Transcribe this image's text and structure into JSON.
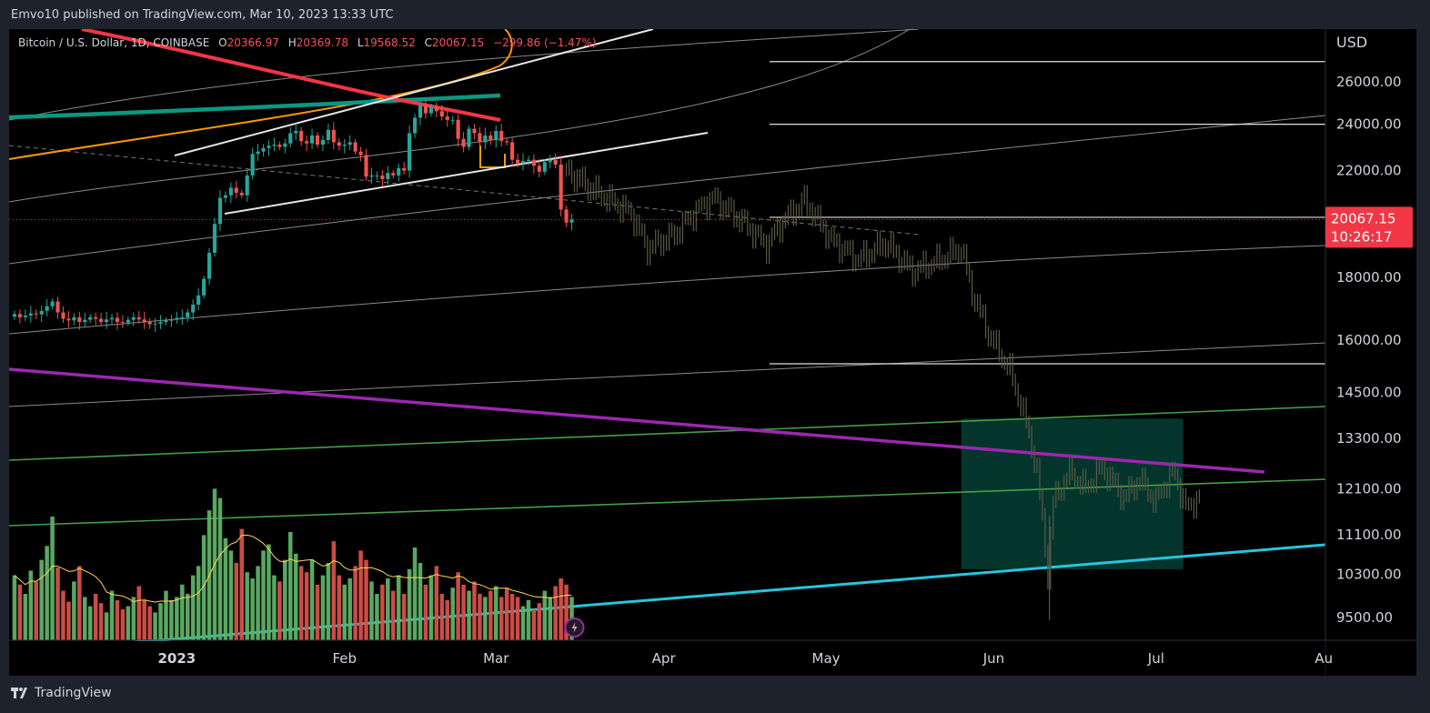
{
  "header": {
    "published": "Emvo10 published on TradingView.com, Mar 10, 2023 13:33 UTC"
  },
  "legend": {
    "symbol": "Bitcoin / U.S. Dollar, 1D, COINBASE",
    "o_label": "O",
    "o_value": "20366.97",
    "h_label": "H",
    "h_value": "20369.78",
    "l_label": "L",
    "l_value": "19568.52",
    "c_label": "C",
    "c_value": "20067.15",
    "change": "−299.86 (−1.47%)"
  },
  "price_axis": {
    "currency": "USD",
    "current_price": "20067.15",
    "countdown": "10:26:17"
  },
  "chart_data": {
    "type": "candlestick",
    "title": "Bitcoin / U.S. Dollar, 1D, COINBASE",
    "y_scale": "log",
    "ylim": [
      9100,
      28700
    ],
    "y_ticks": [
      {
        "value": 26000,
        "label": "26000.00"
      },
      {
        "value": 24000,
        "label": "24000.00"
      },
      {
        "value": 22000,
        "label": "22000.00"
      },
      {
        "value": 18000,
        "label": "18000.00"
      },
      {
        "value": 16000,
        "label": "16000.00"
      },
      {
        "value": 14500,
        "label": "14500.00"
      },
      {
        "value": 13300,
        "label": "13300.00"
      },
      {
        "value": 12100,
        "label": "12100.00"
      },
      {
        "value": 11100,
        "label": "11100.00"
      },
      {
        "value": 10300,
        "label": "10300.00"
      },
      {
        "value": 9500,
        "label": "9500.00"
      }
    ],
    "x_ticks": [
      {
        "day": 16,
        "label": "2023",
        "bold": true
      },
      {
        "day": 47,
        "label": "Feb",
        "bold": false
      },
      {
        "day": 75,
        "label": "Mar",
        "bold": false
      },
      {
        "day": 106,
        "label": "Apr",
        "bold": false
      },
      {
        "day": 136,
        "label": "May",
        "bold": false
      },
      {
        "day": 167,
        "label": "Jun",
        "bold": false
      },
      {
        "day": 197,
        "label": "Jul",
        "bold": false
      },
      {
        "day": 228,
        "label": "Au",
        "bold": false
      }
    ],
    "x_range_days": [
      -15,
      228.3
    ],
    "candles_close": [
      16800,
      16700,
      16750,
      16820,
      16790,
      16900,
      17050,
      17200,
      16850,
      16650,
      16600,
      16700,
      16550,
      16620,
      16700,
      16650,
      16550,
      16630,
      16680,
      16550,
      16530,
      16620,
      16700,
      16630,
      16550,
      16480,
      16500,
      16550,
      16600,
      16620,
      16680,
      16700,
      16850,
      17100,
      17400,
      17950,
      18850,
      19900,
      20900,
      21000,
      21300,
      21100,
      21000,
      21800,
      22700,
      22800,
      22950,
      23050,
      23100,
      23000,
      23150,
      23600,
      23700,
      23250,
      23150,
      23500,
      23100,
      23300,
      23750,
      23200,
      23050,
      23100,
      23200,
      22800,
      22650,
      21750,
      21800,
      21800,
      21650,
      21900,
      21800,
      22100,
      22000,
      23600,
      24300,
      24850,
      24500,
      24800,
      24600,
      24350,
      24200,
      24200,
      23350,
      23000,
      23800,
      23600,
      23200,
      23500,
      23300,
      23700,
      23250,
      23200,
      22450,
      22300,
      22400,
      22450,
      22200,
      21950,
      22350,
      22450,
      22250,
      20450,
      19950,
      20067.15
    ],
    "start_day": -14,
    "projection": {
      "start_day": 88,
      "end_day": 205,
      "waypoints": [
        [
          88,
          22000
        ],
        [
          93,
          21200
        ],
        [
          100,
          20300
        ],
        [
          103,
          19000
        ],
        [
          108,
          19500
        ],
        [
          111,
          20200
        ],
        [
          115,
          20900
        ],
        [
          120,
          20100
        ],
        [
          125,
          19100
        ],
        [
          128,
          20000
        ],
        [
          132,
          20800
        ],
        [
          137,
          19300
        ],
        [
          142,
          18600
        ],
        [
          147,
          19200
        ],
        [
          152,
          18200
        ],
        [
          157,
          18600
        ],
        [
          161,
          19000
        ],
        [
          163,
          17500
        ],
        [
          166,
          16200
        ],
        [
          170,
          15100
        ],
        [
          173,
          13700
        ],
        [
          175,
          12500
        ],
        [
          177,
          10300
        ],
        [
          178,
          11800
        ],
        [
          181,
          12500
        ],
        [
          184,
          12100
        ],
        [
          187,
          12600
        ],
        [
          191,
          11900
        ],
        [
          194,
          12300
        ],
        [
          197,
          11800
        ],
        [
          200,
          12500
        ],
        [
          203,
          11600
        ],
        [
          205,
          12000
        ]
      ]
    },
    "volume": {
      "ma_line": true,
      "bars_relative": [
        0.42,
        0.36,
        0.3,
        0.45,
        0.38,
        0.52,
        0.61,
        0.8,
        0.47,
        0.32,
        0.25,
        0.38,
        0.48,
        0.28,
        0.22,
        0.3,
        0.24,
        0.18,
        0.32,
        0.26,
        0.2,
        0.22,
        0.28,
        0.35,
        0.26,
        0.22,
        0.18,
        0.24,
        0.32,
        0.26,
        0.28,
        0.36,
        0.3,
        0.42,
        0.48,
        0.68,
        0.84,
        0.98,
        0.92,
        0.66,
        0.58,
        0.5,
        0.72,
        0.44,
        0.4,
        0.48,
        0.58,
        0.62,
        0.42,
        0.38,
        0.52,
        0.7,
        0.56,
        0.48,
        0.44,
        0.52,
        0.36,
        0.42,
        0.5,
        0.64,
        0.42,
        0.36,
        0.4,
        0.48,
        0.58,
        0.52,
        0.38,
        0.3,
        0.36,
        0.4,
        0.32,
        0.42,
        0.3,
        0.46,
        0.6,
        0.5,
        0.36,
        0.42,
        0.48,
        0.3,
        0.26,
        0.34,
        0.44,
        0.36,
        0.32,
        0.38,
        0.3,
        0.28,
        0.32,
        0.35,
        0.28,
        0.34,
        0.3,
        0.28,
        0.22,
        0.26,
        0.2,
        0.24,
        0.32,
        0.28,
        0.35,
        0.4,
        0.36,
        0.28
      ]
    },
    "overlays": {
      "horizontal_levels": [
        27000,
        24000,
        20150,
        15300
      ],
      "current_price_line": 20067.15,
      "range_box": {
        "start_day": 161,
        "end_day": 202,
        "high": 13800,
        "low": 10400
      },
      "annotations": [
        "trend channel",
        "arc circles",
        "moving averages"
      ]
    }
  },
  "footer": {
    "brand": "TradingView"
  },
  "colors": {
    "up": "#26a69a",
    "down": "#ef5350",
    "projection": "#5a5a45",
    "purple_line": "#9c27b0",
    "cyan_line": "#26c6da",
    "green_line": "#43a047",
    "box": "rgba(8,153,129,0.35)",
    "price_label_bg": "#f23645"
  }
}
